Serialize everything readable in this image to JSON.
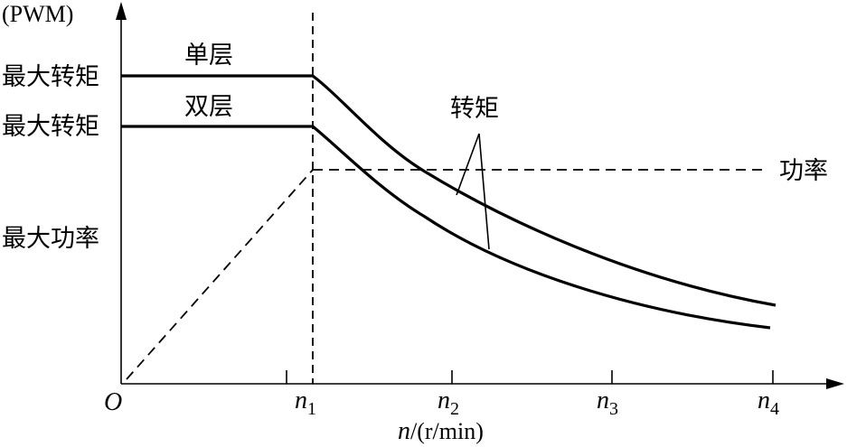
{
  "axes": {
    "y_unit": "(PWM)",
    "origin": "O",
    "x_label_var": "n",
    "x_label_unit": "/(r/min)",
    "x_ticks": [
      {
        "base": "n",
        "sub": "1"
      },
      {
        "base": "n",
        "sub": "2"
      },
      {
        "base": "n",
        "sub": "3"
      },
      {
        "base": "n",
        "sub": "4"
      }
    ]
  },
  "labels": {
    "single_layer": "单层",
    "double_layer": "双层",
    "max_torque_single": "最大转矩",
    "max_torque_double": "最大转矩",
    "max_power": "最大功率",
    "torque": "转矩",
    "power": "功率"
  }
}
